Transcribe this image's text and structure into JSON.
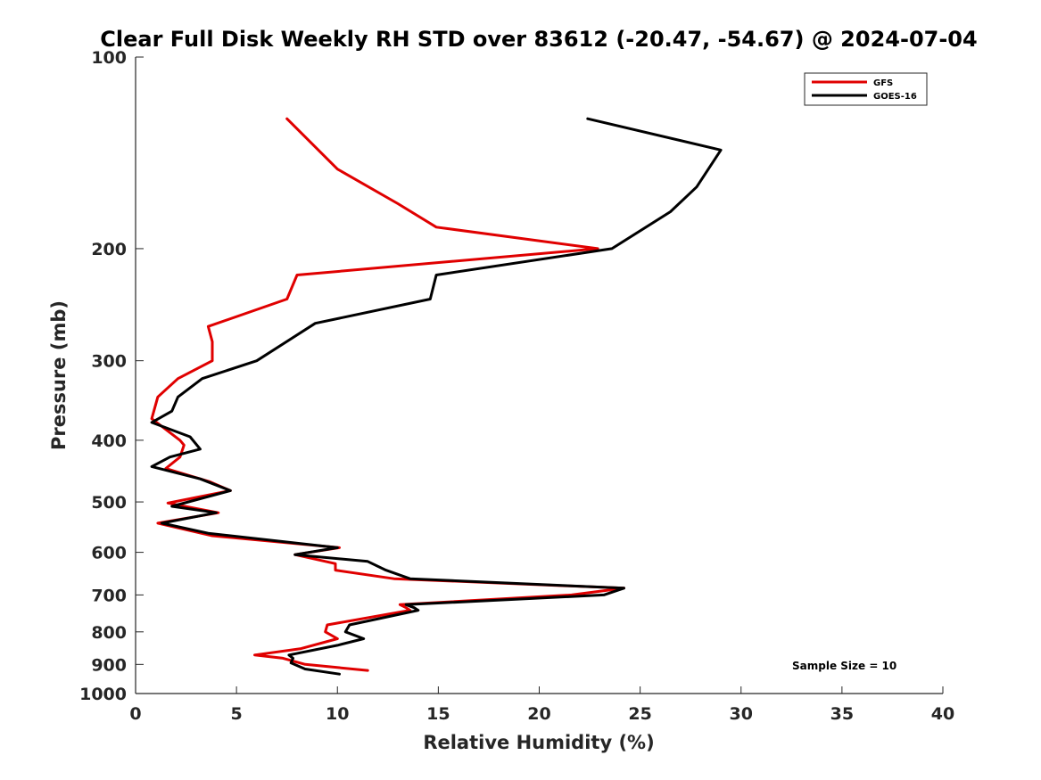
{
  "chart_data": {
    "type": "line",
    "title": "Clear Full Disk Weekly RH STD over 83612 (-20.47, -54.67) @ 2024-07-04",
    "xlabel": "Relative Humidity (%)",
    "ylabel": "Pressure (mb)",
    "xlim": [
      0,
      40
    ],
    "ylim": [
      100,
      1000
    ],
    "yscale": "log",
    "y_reversed": true,
    "grid": false,
    "legend_position": "top-right",
    "xticks": [
      0,
      5,
      10,
      15,
      20,
      25,
      30,
      35,
      40
    ],
    "yticks": [
      100,
      200,
      300,
      400,
      500,
      600,
      700,
      800,
      900,
      1000
    ],
    "annotation": "Sample Size = 10",
    "series": [
      {
        "name": "GFS",
        "color": "#e00000",
        "x": [
          7.5,
          10.0,
          13.0,
          14.9,
          22.9,
          8.0,
          7.5,
          3.6,
          3.8,
          3.8,
          2.1,
          1.1,
          0.8,
          2.2,
          2.4,
          2.2,
          1.5,
          3.7,
          4.7,
          1.6,
          4.1,
          1.1,
          3.8,
          10.1,
          7.9,
          9.9,
          9.9,
          12.8,
          24.2,
          21.6,
          13.1,
          13.4,
          13.6,
          9.5,
          9.4,
          10.0,
          8.2,
          5.9,
          7.3,
          8.4,
          11.5
        ],
        "y": [
          125,
          150,
          170,
          185,
          200,
          220,
          240,
          265,
          280,
          300,
          320,
          342,
          370,
          400,
          407,
          425,
          443,
          465,
          480,
          502,
          520,
          540,
          565,
          590,
          605,
          625,
          640,
          660,
          683,
          700,
          725,
          733,
          740,
          780,
          800,
          820,
          850,
          870,
          880,
          900,
          920
        ]
      },
      {
        "name": "GOES-16",
        "color": "#000000",
        "x": [
          22.4,
          29.0,
          27.8,
          26.5,
          23.6,
          14.9,
          14.6,
          8.9,
          6.0,
          3.3,
          2.1,
          1.8,
          0.8,
          2.7,
          3.2,
          1.7,
          0.8,
          3.2,
          4.7,
          1.8,
          4.0,
          1.3,
          3.6,
          10.0,
          7.9,
          11.5,
          12.4,
          13.6,
          24.2,
          23.2,
          13.4,
          13.8,
          14.0,
          10.6,
          10.4,
          11.3,
          10.0,
          7.6,
          7.8,
          7.7,
          8.4,
          10.1
        ],
        "y": [
          125,
          140,
          160,
          175,
          200,
          220,
          240,
          262,
          300,
          320,
          342,
          360,
          375,
          395,
          413,
          425,
          440,
          460,
          480,
          508,
          520,
          540,
          560,
          590,
          605,
          620,
          640,
          660,
          683,
          700,
          725,
          733,
          740,
          780,
          800,
          820,
          840,
          870,
          880,
          895,
          915,
          932
        ]
      }
    ]
  }
}
